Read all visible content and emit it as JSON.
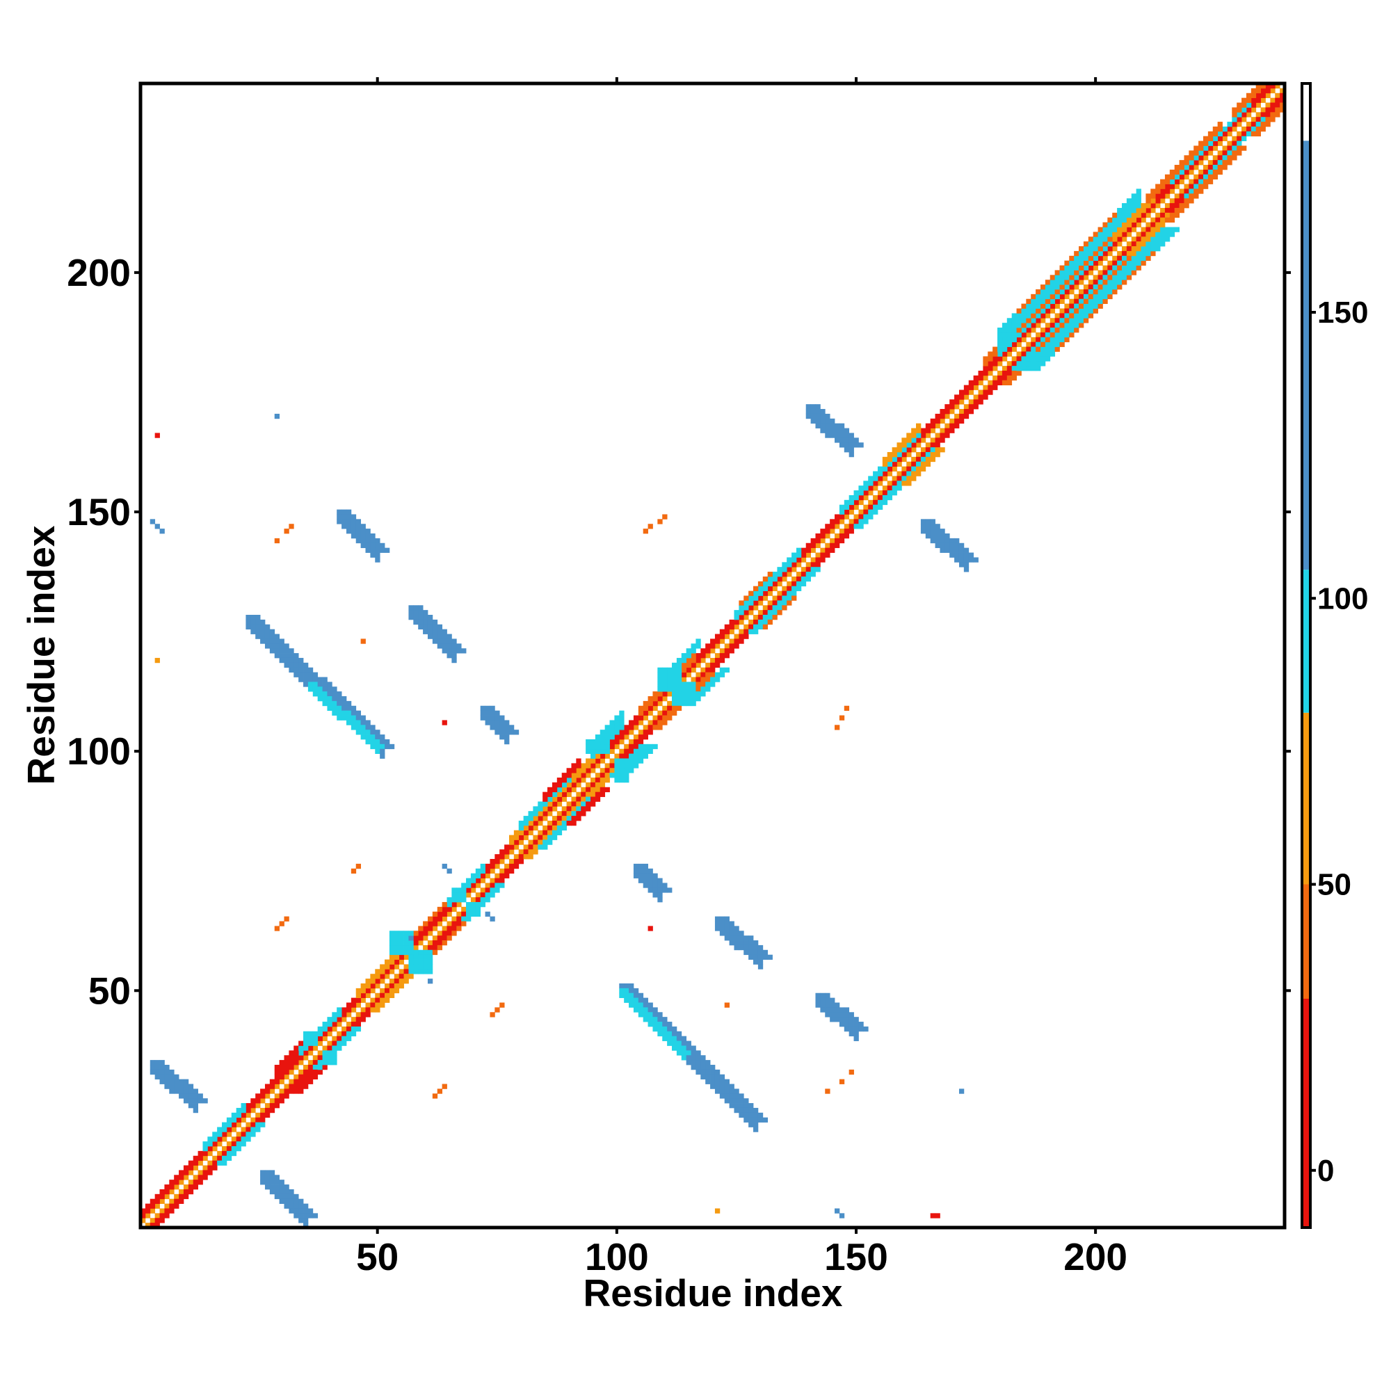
{
  "chart_data": {
    "type": "heatmap",
    "title": "",
    "xlabel": "Residue index",
    "ylabel": "Residue index",
    "n_residues": 239,
    "xlim": [
      0.5,
      239.5
    ],
    "ylim": [
      0.5,
      239.5
    ],
    "x_ticks": [
      50,
      100,
      150,
      200
    ],
    "y_ticks": [
      50,
      100,
      150,
      200
    ],
    "x_tick_labels": [
      "50",
      "100",
      "150",
      "200"
    ],
    "y_tick_labels": [
      "50",
      "100",
      "150",
      "200"
    ],
    "colorbar": {
      "range": [
        -10,
        190
      ],
      "ticks": [
        0,
        50,
        100,
        150
      ],
      "tick_labels": [
        "0",
        "50",
        "100",
        "150"
      ],
      "bands": [
        {
          "from": -10,
          "to": 30,
          "color": "#e8140e"
        },
        {
          "from": 30,
          "to": 50,
          "color": "#f26a10"
        },
        {
          "from": 50,
          "to": 80,
          "color": "#f59a10"
        },
        {
          "from": 80,
          "to": 105,
          "color": "#22d3e6"
        },
        {
          "from": 105,
          "to": 180,
          "color": "#4b8fc8"
        },
        {
          "from": 180,
          "to": 190,
          "color": "#ffffff"
        }
      ]
    },
    "colors": {
      "red": "#e8140e",
      "orange_dark": "#f26a10",
      "orange": "#f59a10",
      "cyan": "#22d3e6",
      "blue": "#4b8fc8"
    },
    "diagonal_bands": [
      {
        "offset": 1,
        "color": "#f59a10"
      },
      {
        "offset": 2,
        "color": "#e8140e"
      },
      {
        "offset": 3,
        "color": "#e8140e"
      }
    ],
    "diagonal_decorations": [
      {
        "from": 14,
        "to": 22,
        "color": "#22d3e6",
        "offsets": [
          3,
          4
        ]
      },
      {
        "from": 29,
        "to": 34,
        "color": "#e8140e",
        "offsets": [
          4,
          5
        ]
      },
      {
        "from": 34,
        "to": 42,
        "color": "#22d3e6",
        "offsets": [
          3,
          4
        ]
      },
      {
        "from": 46,
        "to": 54,
        "color": "#f59a10",
        "offsets": [
          3,
          4
        ]
      },
      {
        "from": 58,
        "to": 66,
        "color": "#f26a10",
        "offsets": [
          4
        ]
      },
      {
        "from": 65,
        "to": 72,
        "color": "#22d3e6",
        "offsets": [
          3,
          4
        ]
      },
      {
        "from": 78,
        "to": 98,
        "color": "#f59a10",
        "offsets": [
          3,
          4
        ]
      },
      {
        "from": 80,
        "to": 90,
        "color": "#22d3e6",
        "offsets": [
          4,
          5
        ]
      },
      {
        "from": 85,
        "to": 92,
        "color": "#e8140e",
        "offsets": [
          5,
          6
        ]
      },
      {
        "from": 95,
        "to": 101,
        "color": "#22d3e6",
        "offsets": [
          4,
          5,
          6,
          7
        ]
      },
      {
        "from": 105,
        "to": 116,
        "color": "#f26a10",
        "offsets": [
          3,
          4
        ]
      },
      {
        "from": 111,
        "to": 117,
        "color": "#22d3e6",
        "offsets": [
          5,
          6
        ]
      },
      {
        "from": 125,
        "to": 138,
        "color": "#22d3e6",
        "offsets": [
          3,
          4
        ]
      },
      {
        "from": 126,
        "to": 132,
        "color": "#f26a10",
        "offsets": [
          5
        ]
      },
      {
        "from": 147,
        "to": 163,
        "color": "#22d3e6",
        "offsets": [
          3,
          4
        ]
      },
      {
        "from": 156,
        "to": 163,
        "color": "#f59a10",
        "offsets": [
          4,
          5
        ]
      },
      {
        "from": 177,
        "to": 188,
        "color": "#f26a10",
        "offsets": [
          4,
          5
        ]
      },
      {
        "from": 180,
        "to": 209,
        "color": "#22d3e6",
        "offsets": [
          3,
          4,
          5,
          6,
          7,
          8
        ]
      },
      {
        "from": 184,
        "to": 204,
        "color": "#f26a10",
        "offsets": [
          4,
          8
        ]
      },
      {
        "from": 204,
        "to": 212,
        "color": "#f59a10",
        "offsets": [
          3,
          4
        ]
      },
      {
        "from": 211,
        "to": 226,
        "color": "#f26a10",
        "offsets": [
          4,
          5
        ]
      },
      {
        "from": 216,
        "to": 232,
        "color": "#22d3e6",
        "offsets": [
          3
        ]
      },
      {
        "from": 229,
        "to": 239,
        "color": "#f26a10",
        "offsets": [
          4,
          5
        ]
      }
    ],
    "antiparallel_strands": [
      {
        "x1": 3,
        "y1": 35,
        "x2": 12,
        "y2": 27,
        "width": 2,
        "color": "#4b8fc8"
      },
      {
        "x1": 26,
        "y1": 12,
        "x2": 35,
        "y2": 3,
        "width": 2,
        "color": "#4b8fc8"
      },
      {
        "x1": 23,
        "y1": 128,
        "x2": 51,
        "y2": 101,
        "width": 2,
        "color": "#4b8fc8"
      },
      {
        "x1": 36,
        "y1": 114,
        "x2": 50,
        "y2": 101,
        "width": 1,
        "color": "#22d3e6"
      },
      {
        "x1": 42,
        "y1": 150,
        "x2": 50,
        "y2": 142,
        "width": 2,
        "color": "#4b8fc8"
      },
      {
        "x1": 57,
        "y1": 130,
        "x2": 66,
        "y2": 121,
        "width": 2,
        "color": "#4b8fc8"
      },
      {
        "x1": 72,
        "y1": 109,
        "x2": 77,
        "y2": 104,
        "width": 2,
        "color": "#4b8fc8"
      },
      {
        "x1": 101,
        "y1": 51,
        "x2": 129,
        "y2": 23,
        "width": 2,
        "color": "#4b8fc8"
      },
      {
        "x1": 101,
        "y1": 50,
        "x2": 114,
        "y2": 37,
        "width": 1,
        "color": "#22d3e6"
      },
      {
        "x1": 104,
        "y1": 76,
        "x2": 109,
        "y2": 71,
        "width": 2,
        "color": "#4b8fc8"
      },
      {
        "x1": 121,
        "y1": 65,
        "x2": 130,
        "y2": 57,
        "width": 2,
        "color": "#4b8fc8"
      },
      {
        "x1": 142,
        "y1": 49,
        "x2": 150,
        "y2": 42,
        "width": 2,
        "color": "#4b8fc8"
      },
      {
        "x1": 140,
        "y1": 172,
        "x2": 149,
        "y2": 164,
        "width": 2,
        "color": "#4b8fc8"
      },
      {
        "x1": 164,
        "y1": 148,
        "x2": 173,
        "y2": 140,
        "width": 2,
        "color": "#4b8fc8"
      }
    ],
    "scatter_points": [
      {
        "x": 4,
        "y": 166,
        "color": "#e8140e"
      },
      {
        "x": 29,
        "y": 170,
        "color": "#4b8fc8"
      },
      {
        "x": 3,
        "y": 148,
        "color": "#4b8fc8"
      },
      {
        "x": 4,
        "y": 147,
        "color": "#4b8fc8"
      },
      {
        "x": 5,
        "y": 146,
        "color": "#4b8fc8"
      },
      {
        "x": 29,
        "y": 144,
        "color": "#f26a10"
      },
      {
        "x": 31,
        "y": 146,
        "color": "#f26a10"
      },
      {
        "x": 32,
        "y": 147,
        "color": "#f26a10"
      },
      {
        "x": 4,
        "y": 119,
        "color": "#f59a10"
      },
      {
        "x": 47,
        "y": 123,
        "color": "#f26a10"
      },
      {
        "x": 64,
        "y": 106,
        "color": "#e8140e"
      },
      {
        "x": 106,
        "y": 146,
        "color": "#f26a10"
      },
      {
        "x": 107,
        "y": 147,
        "color": "#f26a10"
      },
      {
        "x": 109,
        "y": 148,
        "color": "#f26a10"
      },
      {
        "x": 110,
        "y": 149,
        "color": "#f26a10"
      },
      {
        "x": 146,
        "y": 105,
        "color": "#f26a10"
      },
      {
        "x": 147,
        "y": 107,
        "color": "#f26a10"
      },
      {
        "x": 148,
        "y": 109,
        "color": "#f26a10"
      },
      {
        "x": 45,
        "y": 75,
        "color": "#f26a10"
      },
      {
        "x": 46,
        "y": 76,
        "color": "#f26a10"
      },
      {
        "x": 29,
        "y": 63,
        "color": "#f26a10"
      },
      {
        "x": 30,
        "y": 64,
        "color": "#f26a10"
      },
      {
        "x": 31,
        "y": 65,
        "color": "#f26a10"
      },
      {
        "x": 64,
        "y": 76,
        "color": "#4b8fc8"
      },
      {
        "x": 65,
        "y": 75,
        "color": "#4b8fc8"
      },
      {
        "x": 73,
        "y": 66,
        "color": "#4b8fc8"
      },
      {
        "x": 74,
        "y": 65,
        "color": "#4b8fc8"
      },
      {
        "x": 61,
        "y": 52,
        "color": "#4b8fc8"
      },
      {
        "x": 57,
        "y": 61,
        "color": "#4b8fc8"
      },
      {
        "x": 107,
        "y": 63,
        "color": "#e8140e"
      },
      {
        "x": 74,
        "y": 45,
        "color": "#f26a10"
      },
      {
        "x": 75,
        "y": 46,
        "color": "#f26a10"
      },
      {
        "x": 76,
        "y": 47,
        "color": "#f26a10"
      },
      {
        "x": 123,
        "y": 47,
        "color": "#f26a10"
      },
      {
        "x": 62,
        "y": 28,
        "color": "#f26a10"
      },
      {
        "x": 63,
        "y": 29,
        "color": "#f26a10"
      },
      {
        "x": 64,
        "y": 30,
        "color": "#f26a10"
      },
      {
        "x": 144,
        "y": 29,
        "color": "#f26a10"
      },
      {
        "x": 147,
        "y": 31,
        "color": "#f26a10"
      },
      {
        "x": 149,
        "y": 33,
        "color": "#f26a10"
      },
      {
        "x": 172,
        "y": 29,
        "color": "#4b8fc8"
      },
      {
        "x": 121,
        "y": 4,
        "color": "#f59a10"
      },
      {
        "x": 146,
        "y": 4,
        "color": "#4b8fc8"
      },
      {
        "x": 147,
        "y": 3,
        "color": "#4b8fc8"
      },
      {
        "x": 166,
        "y": 3,
        "color": "#e8140e"
      },
      {
        "x": 167,
        "y": 3,
        "color": "#e8140e"
      }
    ],
    "contact_patches": [
      {
        "x": 111,
        "y": 115,
        "rx": 2,
        "ry": 2,
        "color": "#22d3e6"
      },
      {
        "x": 114,
        "y": 112,
        "rx": 2,
        "ry": 2,
        "color": "#22d3e6"
      },
      {
        "x": 55,
        "y": 60,
        "rx": 2,
        "ry": 2,
        "color": "#22d3e6"
      },
      {
        "x": 59,
        "y": 56,
        "rx": 2,
        "ry": 2,
        "color": "#22d3e6"
      },
      {
        "x": 67,
        "y": 70,
        "rx": 1,
        "ry": 1,
        "color": "#22d3e6"
      },
      {
        "x": 70,
        "y": 67,
        "rx": 1,
        "ry": 1,
        "color": "#22d3e6"
      },
      {
        "x": 96,
        "y": 101,
        "rx": 2,
        "ry": 1,
        "color": "#22d3e6"
      },
      {
        "x": 101,
        "y": 96,
        "rx": 1,
        "ry": 2,
        "color": "#22d3e6"
      },
      {
        "x": 36,
        "y": 40,
        "rx": 1,
        "ry": 1,
        "color": "#22d3e6"
      },
      {
        "x": 40,
        "y": 36,
        "rx": 1,
        "ry": 1,
        "color": "#22d3e6"
      }
    ]
  }
}
